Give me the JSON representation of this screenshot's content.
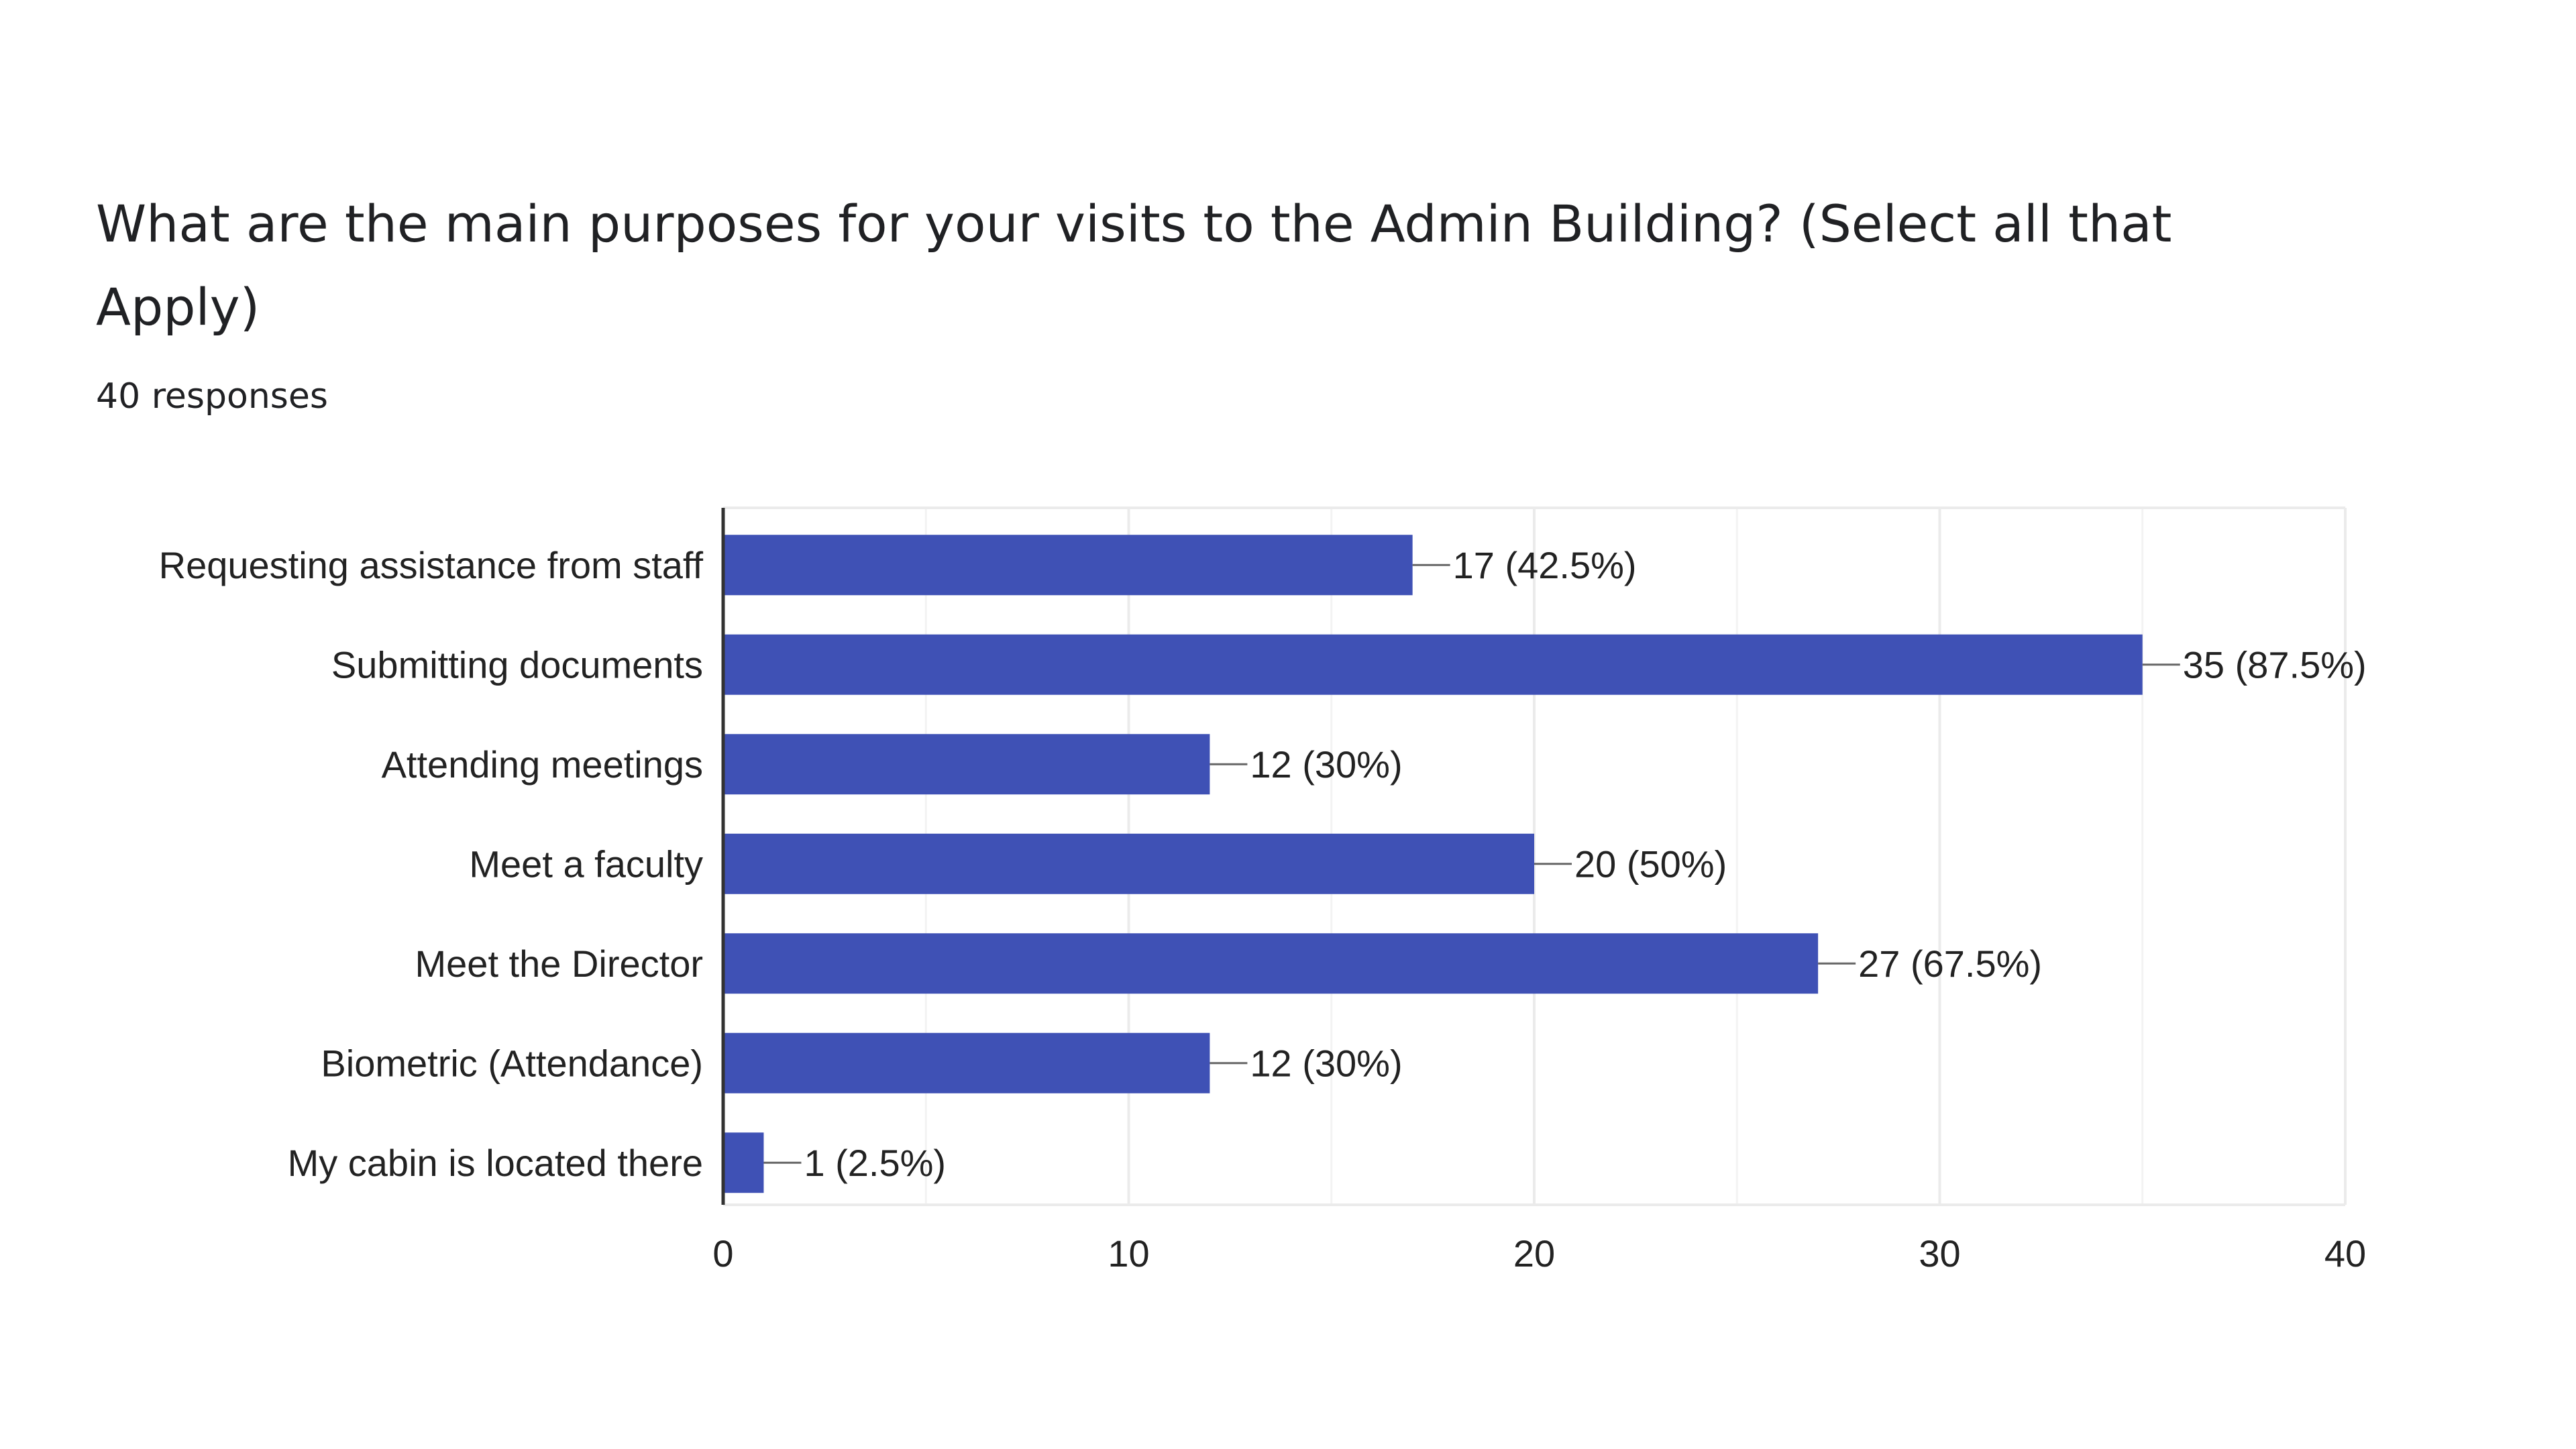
{
  "question": {
    "title": "What are the main purposes for your visits to the Admin Building? (Select all that Apply)",
    "responses": "40 responses"
  },
  "colors": {
    "bar": "#3f51b5",
    "grid": "#ebebeb",
    "axis": "#333333",
    "label": "#222222",
    "connector": "#666666"
  },
  "chart_data": {
    "type": "bar",
    "orientation": "horizontal",
    "categories": [
      "Requesting assistance from staff",
      "Submitting documents",
      "Attending meetings",
      "Meet a faculty",
      "Meet the Director",
      "Biometric (Attendance)",
      "My cabin is located there"
    ],
    "values": [
      17,
      35,
      12,
      20,
      27,
      12,
      1
    ],
    "data_labels": [
      "17 (42.5%)",
      "35 (87.5%)",
      "12 (30%)",
      "20 (50%)",
      "27 (67.5%)",
      "12 (30%)",
      "1 (2.5%)"
    ],
    "xlim": [
      0,
      40
    ],
    "x_ticks": [
      0,
      10,
      20,
      30,
      40
    ],
    "x_tick_labels": [
      "0",
      "10",
      "20",
      "30",
      "40"
    ],
    "minor_gridlines": [
      5,
      15,
      25,
      35
    ],
    "grid": true,
    "legend": "none"
  }
}
